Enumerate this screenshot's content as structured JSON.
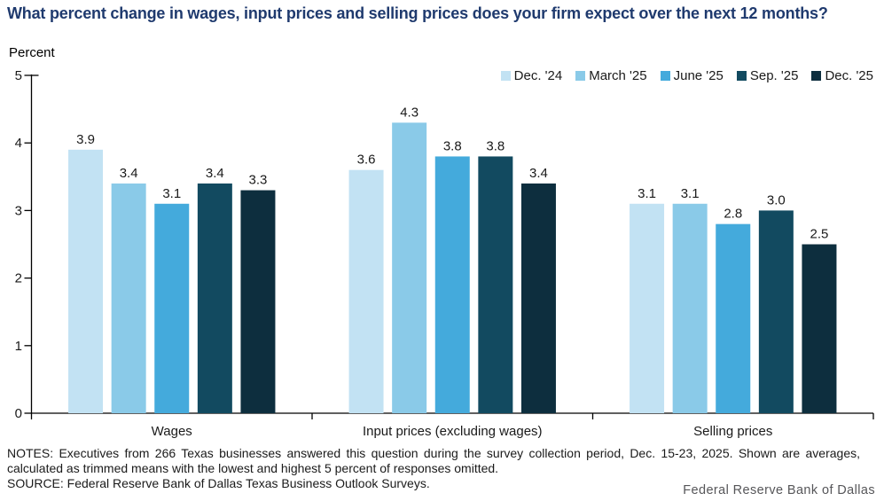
{
  "chart_data": {
    "type": "bar",
    "title": "What percent change in wages, input prices and selling prices does your firm expect over the next 12 months?",
    "ylabel": "Percent",
    "xlabel": "",
    "ylim": [
      0,
      5
    ],
    "yticks": [
      0,
      1,
      2,
      3,
      4,
      5
    ],
    "grid": false,
    "legend_position": "top-right",
    "categories": [
      "Wages",
      "Input prices (excluding wages)",
      "Selling prices"
    ],
    "series": [
      {
        "name": "Dec. '24",
        "color": "#c2e2f3",
        "values": [
          3.9,
          3.6,
          3.1
        ]
      },
      {
        "name": "March '25",
        "color": "#8acae8",
        "values": [
          3.4,
          4.3,
          3.1
        ]
      },
      {
        "name": "June '25",
        "color": "#44aadc",
        "values": [
          3.1,
          3.8,
          2.8
        ]
      },
      {
        "name": "Sep. '25",
        "color": "#124a60",
        "values": [
          3.4,
          3.8,
          3.0
        ]
      },
      {
        "name": "Dec. '25",
        "color": "#0d2e3e",
        "values": [
          3.3,
          3.4,
          2.5
        ]
      }
    ]
  },
  "notes": "NOTES: Executives from 266 Texas businesses answered this question during the survey collection period, Dec. 15-23, 2025. Shown are averages, calculated as trimmed means with the lowest and highest 5 percent of responses omitted.",
  "source": "SOURCE: Federal Reserve Bank of Dallas Texas Business Outlook Surveys.",
  "footer": "Federal Reserve Bank of Dallas",
  "colors": {
    "title_text": "#1f3a6e",
    "axis": "#000000",
    "label_text": "#1a1a1a",
    "footer_text": "#565659"
  }
}
